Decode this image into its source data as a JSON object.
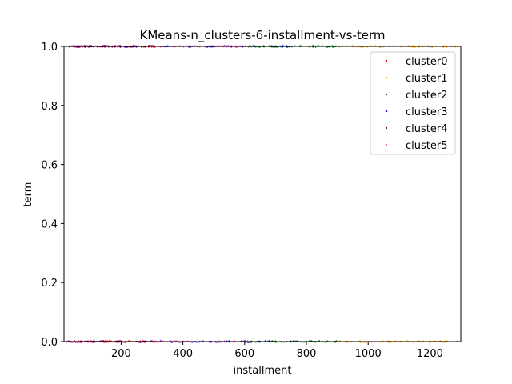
{
  "chart_data": {
    "type": "scatter",
    "title": "KMeans-n_clusters-6-installment-vs-term",
    "xlabel": "installment",
    "ylabel": "term",
    "xlim": [
      15,
      1300
    ],
    "ylim": [
      0,
      1
    ],
    "x_ticks": [
      200,
      400,
      600,
      800,
      1000,
      1200
    ],
    "y_ticks": [
      0.0,
      0.2,
      0.4,
      0.6,
      0.8,
      1.0
    ],
    "x_tick_labels": [
      "200",
      "400",
      "600",
      "800",
      "1000",
      "1200"
    ],
    "y_tick_labels": [
      "0.0",
      "0.2",
      "0.4",
      "0.6",
      "0.8",
      "1.0"
    ],
    "legend_position": "top-right",
    "grid": false,
    "series": [
      {
        "name": "cluster0",
        "color": "#ff0000",
        "x_range": [
          30,
          310
        ],
        "y_values": [
          0,
          1
        ]
      },
      {
        "name": "cluster1",
        "color": "#ffa500",
        "x_range": [
          880,
          1290
        ],
        "y_values": [
          0,
          1
        ]
      },
      {
        "name": "cluster2",
        "color": "#008000",
        "x_range": [
          600,
          900
        ],
        "y_values": [
          0,
          1
        ]
      },
      {
        "name": "cluster3",
        "color": "#0000ff",
        "x_range": [
          180,
          760
        ],
        "y_values": [
          0,
          1
        ]
      },
      {
        "name": "cluster4",
        "color": "#800080",
        "x_range": [
          20,
          200
        ],
        "y_values": [
          0,
          1
        ]
      },
      {
        "name": "cluster5",
        "color": "#ff69b4",
        "x_range": [
          300,
          620
        ],
        "y_values": [
          0,
          1
        ]
      }
    ]
  }
}
